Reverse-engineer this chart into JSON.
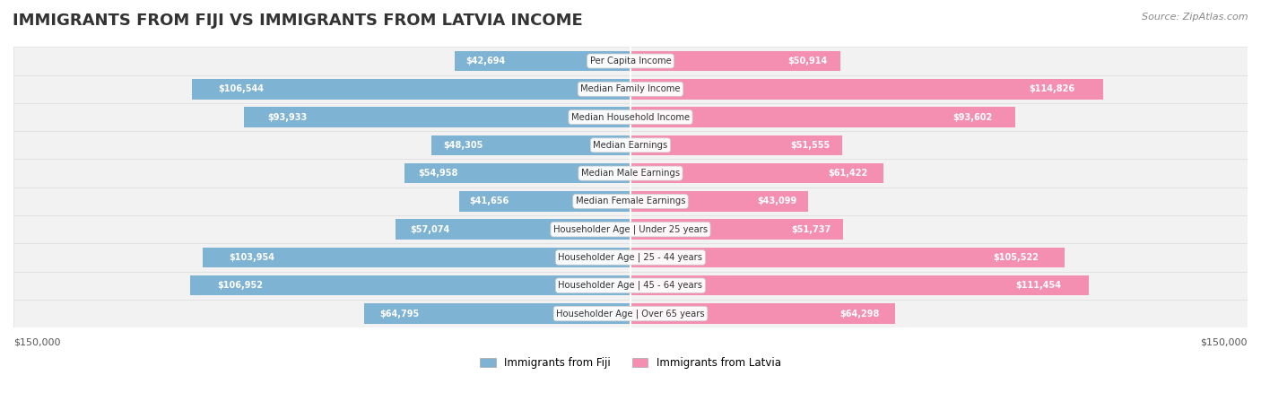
{
  "title": "IMMIGRANTS FROM FIJI VS IMMIGRANTS FROM LATVIA INCOME",
  "source": "Source: ZipAtlas.com",
  "categories": [
    "Per Capita Income",
    "Median Family Income",
    "Median Household Income",
    "Median Earnings",
    "Median Male Earnings",
    "Median Female Earnings",
    "Householder Age | Under 25 years",
    "Householder Age | 25 - 44 years",
    "Householder Age | 45 - 64 years",
    "Householder Age | Over 65 years"
  ],
  "fiji_values": [
    42694,
    106544,
    93933,
    48305,
    54958,
    41656,
    57074,
    103954,
    106952,
    64795
  ],
  "latvia_values": [
    50914,
    114826,
    93602,
    51555,
    61422,
    43099,
    51737,
    105522,
    111454,
    64298
  ],
  "fiji_labels": [
    "$42,694",
    "$106,544",
    "$93,933",
    "$48,305",
    "$54,958",
    "$41,656",
    "$57,074",
    "$103,954",
    "$106,952",
    "$64,795"
  ],
  "latvia_labels": [
    "$50,914",
    "$114,826",
    "$93,602",
    "$51,555",
    "$61,422",
    "$43,099",
    "$51,737",
    "$105,522",
    "$111,454",
    "$64,298"
  ],
  "fiji_color": "#7fb3d3",
  "latvia_color": "#f48fb1",
  "max_value": 150000,
  "title_fontsize": 13,
  "label_fontsize": 7.0,
  "cat_fontsize": 7.2,
  "axis_fontsize": 8,
  "legend_fontsize": 8.5,
  "bar_height": 0.72,
  "row_bg_color": "#f2f2f2",
  "row_edge_color": "#dddddd",
  "cat_box_color": "white",
  "cat_box_edge": "#cccccc",
  "title_color": "#333333",
  "source_color": "#888888",
  "label_color_inside": "white",
  "label_color_outside": "#555555",
  "axis_label_color": "#555555",
  "inside_threshold": 30000
}
